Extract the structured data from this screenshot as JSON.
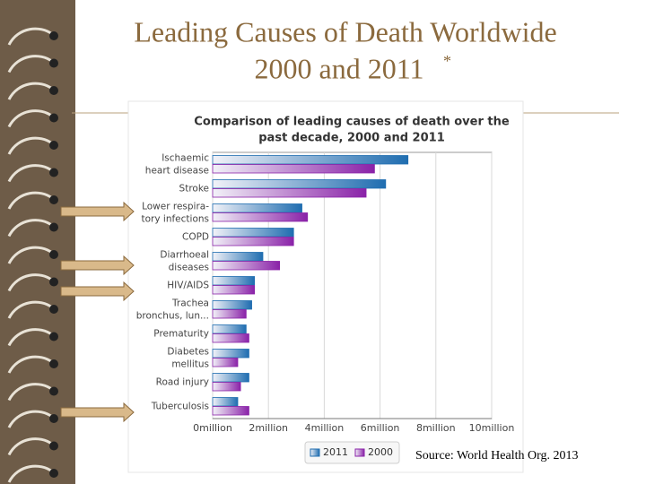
{
  "slide": {
    "title": [
      "Leading Causes of Death Worldwide",
      "2000 and 2011"
    ],
    "title_note": "*",
    "source": "Source: World Health Org. 2013"
  },
  "chart_data": {
    "type": "hbar",
    "title": [
      "Comparison of leading causes of death over the",
      "past decade, 2000 and 2011"
    ],
    "categories": [
      "Ischaemic\nheart disease",
      "Stroke",
      "Lower respira-\ntory infections",
      "COPD",
      "Diarrhoeal\ndiseases",
      "HIV/AIDS",
      "Trachea\nbronchus, lun...",
      "Prematurity",
      "Diabetes\nmellitus",
      "Road injury",
      "Tuberculosis"
    ],
    "series": [
      {
        "name": "2011",
        "color": "#1f6db0",
        "values": [
          7000000,
          6200000,
          3200000,
          2900000,
          1800000,
          1500000,
          1400000,
          1200000,
          1300000,
          1300000,
          900000
        ]
      },
      {
        "name": "2000",
        "color": "#8a22a8",
        "values": [
          5800000,
          5500000,
          3400000,
          2900000,
          2400000,
          1500000,
          1200000,
          1300000,
          900000,
          1000000,
          1300000
        ]
      }
    ],
    "xlim": [
      0,
      10000000
    ],
    "xticks": [
      {
        "value": 0,
        "label": "0million"
      },
      {
        "value": 2000000,
        "label": "2million"
      },
      {
        "value": 4000000,
        "label": "4million"
      },
      {
        "value": 6000000,
        "label": "6million"
      },
      {
        "value": 8000000,
        "label": "8million"
      },
      {
        "value": 10000000,
        "label": "10million"
      }
    ],
    "grid": true
  }
}
